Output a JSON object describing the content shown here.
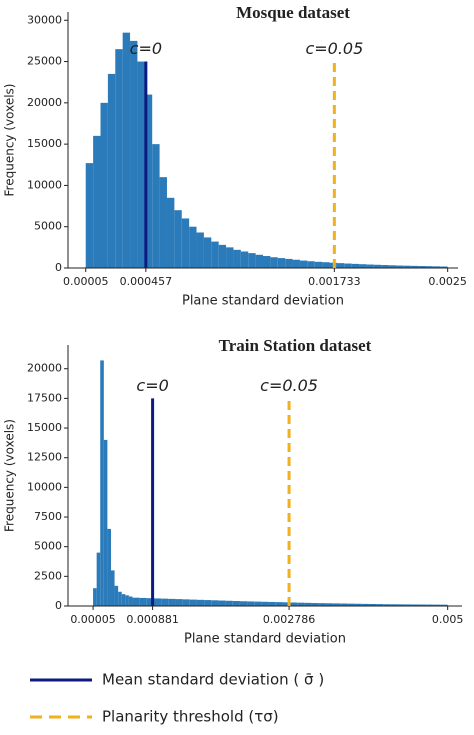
{
  "chart_data": [
    {
      "type": "histogram",
      "title": "Mosque dataset",
      "xlabel": "Plane standard deviation",
      "ylabel": "Frequency (voxels)",
      "color": "#2b7bba",
      "bins": [
        5e-05,
        0.0001,
        0.00015,
        0.0002,
        0.00025,
        0.0003,
        0.00035,
        0.0004,
        0.00045,
        0.0005,
        0.00055,
        0.0006,
        0.00065,
        0.0007,
        0.00075,
        0.0008,
        0.00085,
        0.0009,
        0.00095,
        0.001,
        0.00105,
        0.0011,
        0.00115,
        0.0012,
        0.00125,
        0.0013,
        0.00135,
        0.0014,
        0.00145,
        0.0015,
        0.00155,
        0.0016,
        0.00165,
        0.0017,
        0.00175,
        0.0018,
        0.00185,
        0.0019,
        0.00195,
        0.002,
        0.00205,
        0.0021,
        0.00215,
        0.0022,
        0.00225,
        0.0023,
        0.00235,
        0.0024,
        0.00245,
        0.0025
      ],
      "counts": [
        12700,
        16000,
        20000,
        23500,
        26500,
        28500,
        27500,
        25000,
        21000,
        15000,
        11000,
        8500,
        7000,
        6000,
        5000,
        4300,
        3700,
        3200,
        2800,
        2500,
        2200,
        2000,
        1800,
        1600,
        1450,
        1300,
        1200,
        1100,
        1000,
        900,
        820,
        750,
        700,
        640,
        590,
        540,
        500,
        460,
        420,
        390,
        360,
        330,
        300,
        280,
        260,
        240,
        220,
        200,
        180
      ],
      "xlim": [
        -7e-05,
        0.00257
      ],
      "xticks": [
        5e-05,
        0.000457,
        0.001733,
        0.0025
      ],
      "ylim": [
        0,
        31000
      ],
      "yticks": [
        0,
        5000,
        10000,
        15000,
        20000,
        25000,
        30000
      ],
      "markers": [
        {
          "label": "c=0",
          "x": 0.000457,
          "height": 25000
        },
        {
          "label": "c=0.05",
          "x": 0.001733,
          "height": 25000
        }
      ]
    },
    {
      "type": "histogram",
      "title": "Train Station dataset",
      "xlabel": "Plane standard deviation",
      "ylabel": "Frequency (voxels)",
      "color": "#2b7bba",
      "bins": [
        5e-05,
        0.0001,
        0.00015,
        0.0002,
        0.00025,
        0.0003,
        0.00035,
        0.0004,
        0.00045,
        0.0005,
        0.00055,
        0.0006,
        0.0007,
        0.0008,
        0.0009,
        0.001,
        0.0011,
        0.0012,
        0.0013,
        0.0014,
        0.0015,
        0.0016,
        0.0017,
        0.0018,
        0.0019,
        0.002,
        0.0021,
        0.0022,
        0.0023,
        0.0024,
        0.0025,
        0.0026,
        0.0027,
        0.0028,
        0.0029,
        0.003,
        0.0031,
        0.0032,
        0.0033,
        0.0034,
        0.0035,
        0.0036,
        0.0037,
        0.0038,
        0.0039,
        0.004,
        0.0041,
        0.0042,
        0.0043,
        0.0044,
        0.0045,
        0.0046,
        0.0047,
        0.0048,
        0.0049,
        0.005
      ],
      "counts": [
        1500,
        4500,
        20700,
        14000,
        6500,
        3000,
        1700,
        1200,
        1000,
        900,
        800,
        700,
        680,
        660,
        640,
        620,
        600,
        580,
        560,
        540,
        520,
        500,
        480,
        460,
        440,
        420,
        400,
        385,
        370,
        355,
        340,
        325,
        310,
        295,
        280,
        265,
        250,
        240,
        230,
        220,
        210,
        200,
        190,
        180,
        170,
        160,
        150,
        145,
        140,
        135,
        130,
        125,
        120,
        115,
        110
      ],
      "xlim": [
        -0.0003,
        0.0052
      ],
      "xticks": [
        5e-05,
        0.000881,
        0.002786,
        0.005
      ],
      "ylim": [
        0,
        22000
      ],
      "yticks": [
        0,
        2500,
        5000,
        7500,
        10000,
        12500,
        15000,
        17500,
        20000
      ],
      "markers": [
        {
          "label": "c=0",
          "x": 0.000881,
          "height": 17500
        },
        {
          "label": "c=0.05",
          "x": 0.002786,
          "height": 17500
        }
      ]
    }
  ],
  "legend": [
    {
      "name": "Mean standard deviation ( σ̄ )",
      "color": "#0d1a80",
      "dashed": false
    },
    {
      "name": "Planarity threshold (τσ)",
      "color": "#f0b020",
      "dashed": true
    }
  ]
}
